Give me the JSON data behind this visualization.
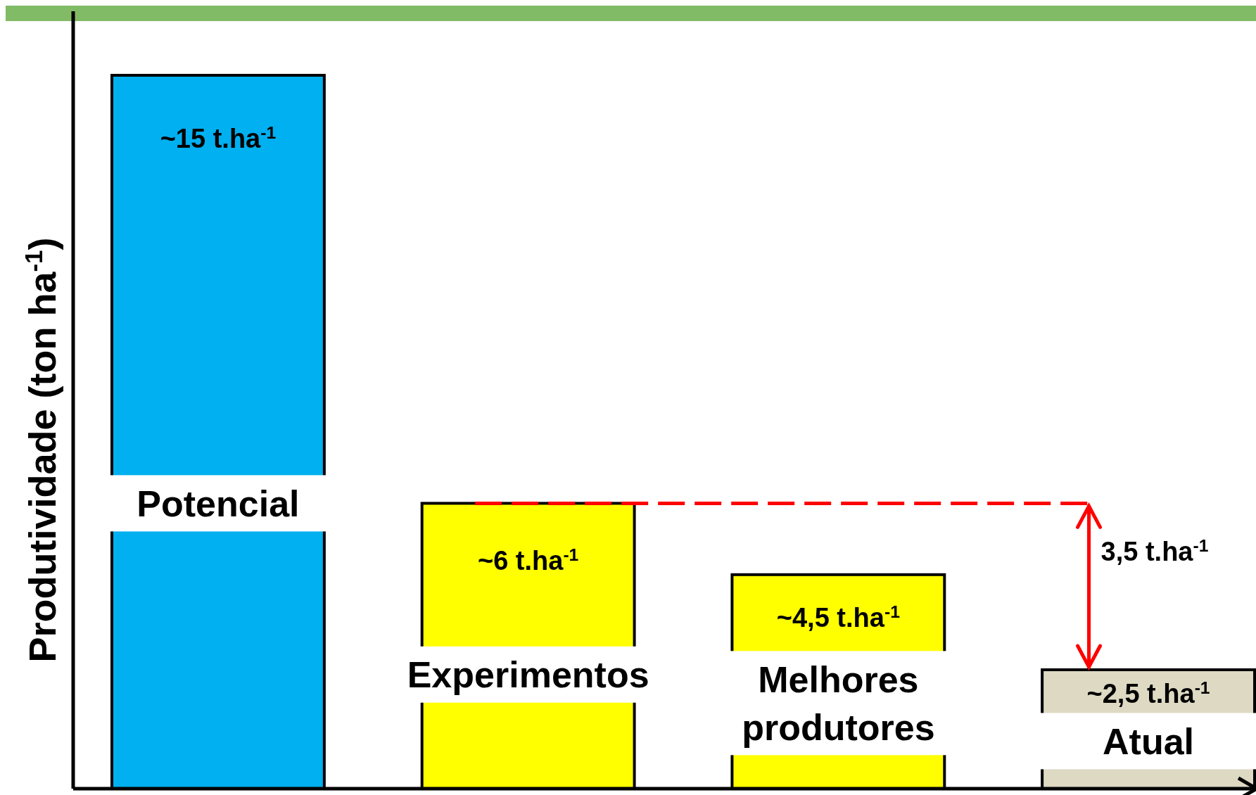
{
  "chart_data": {
    "type": "bar",
    "ylabel": "Produtividade (ton ha$^{-1}$)",
    "categories": [
      "Potencial",
      "Experimentos",
      "Melhores produtores",
      "Atual"
    ],
    "values": [
      15,
      6,
      4.5,
      2.5
    ],
    "colors": [
      "#00b0f0",
      "#ffff00",
      "#ffff00",
      "#ddd9c3"
    ],
    "value_labels": [
      "~15 t.ha$^{-1}$",
      "~6 t.ha$^{-1}$",
      "~4,5 t.ha$^{-1}$",
      "~2,5 t.ha$^{-1}$"
    ],
    "ref_lines": [
      {
        "axis": "y",
        "value": 6,
        "color": "#ff0000",
        "line_style": "dashed"
      }
    ],
    "annotations": [
      "3,5 t.ha$^{-1}$"
    ]
  }
}
